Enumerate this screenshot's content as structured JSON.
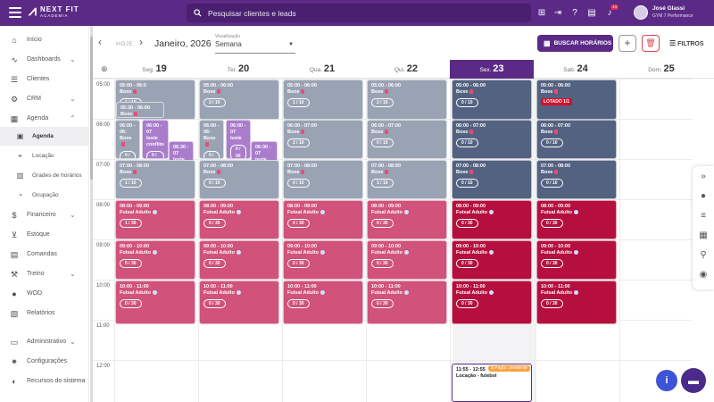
{
  "topbar": {
    "brand": "NEXT FIT",
    "brand_sub": "ACADEMIA",
    "search_placeholder": "Pesquisar clientes e leads",
    "notif_count": "14",
    "user_name": "José Glassi",
    "user_gym": "GYM 7 Performance",
    "icons": [
      "gift-icon",
      "exit-icon",
      "help-icon",
      "chat-icon",
      "bell-icon"
    ]
  },
  "sidebar": {
    "items": [
      {
        "label": "Início",
        "icon": "home-icon",
        "chev": ""
      },
      {
        "label": "Dashboards",
        "icon": "chart-icon",
        "chev": "⌄"
      },
      {
        "label": "Clientes",
        "icon": "clients-icon",
        "chev": ""
      },
      {
        "label": "CRM",
        "icon": "crm-icon",
        "chev": "⌄"
      },
      {
        "label": "Agenda",
        "icon": "calendar-icon",
        "chev": "⌃"
      },
      {
        "label": "Agenda",
        "icon": "calendar-small-icon",
        "chev": "",
        "sub": true,
        "active": true
      },
      {
        "label": "Locação",
        "icon": "location-icon",
        "chev": "",
        "sub": true
      },
      {
        "label": "Grades de horários",
        "icon": "grid-icon",
        "chev": "",
        "sub": true
      },
      {
        "label": "Ocupação",
        "icon": "occupation-icon",
        "chev": "",
        "sub": true
      },
      {
        "label": "Financeiro",
        "icon": "finance-icon",
        "chev": "⌄"
      },
      {
        "label": "Estoque",
        "icon": "cart-icon",
        "chev": ""
      },
      {
        "label": "Comandas",
        "icon": "orders-icon",
        "chev": ""
      },
      {
        "label": "Treino",
        "icon": "dumbbell-icon",
        "chev": "⌄"
      },
      {
        "label": "WOD",
        "icon": "wod-icon",
        "chev": ""
      },
      {
        "label": "Relatórios",
        "icon": "reports-icon",
        "chev": ""
      },
      {
        "label": "Administrativo",
        "icon": "admin-icon",
        "chev": "⌄"
      },
      {
        "label": "Configurações",
        "icon": "settings-icon",
        "chev": ""
      },
      {
        "label": "Recursos do sistema",
        "icon": "toggle-icon",
        "chev": ""
      }
    ]
  },
  "toolbar": {
    "hoje": "HOJE",
    "month": "Janeiro, 2026",
    "view_label": "Visualização",
    "view_value": "Semana",
    "buscar": "BUSCAR HORÁRIOS",
    "filtros": "FILTROS"
  },
  "days": [
    {
      "name": "Seg.",
      "num": "19"
    },
    {
      "name": "Ter.",
      "num": "20"
    },
    {
      "name": "Qua.",
      "num": "21"
    },
    {
      "name": "Qui.",
      "num": "22"
    },
    {
      "name": "Sex.",
      "num": "23",
      "today": true
    },
    {
      "name": "Sab.",
      "num": "24"
    },
    {
      "name": "Dom.",
      "num": "25"
    }
  ],
  "hours": [
    "05:00",
    "06:00",
    "07:00",
    "08:00",
    "09:00",
    "10:00",
    "11:00",
    "12:00"
  ],
  "events": [
    {
      "day": 0,
      "time": "05:00 - 06:0",
      "name": "Boxe",
      "pill": "1 / 10",
      "color": "gray",
      "slot": "box5"
    },
    {
      "day": 0,
      "time": "05:30 - 06:00",
      "name": "Boxe",
      "pill": "",
      "color": "gray",
      "slot": "box530"
    },
    {
      "day": 0,
      "time": "06:00 - 06:",
      "name": "Boxe",
      "pill": "0 / 10",
      "color": "gray",
      "slot": "box6a"
    },
    {
      "day": 0,
      "time": "06:00 - 07",
      "name": "teste conflito",
      "pill": "0 / 00",
      "color": "violet",
      "slot": "conf1"
    },
    {
      "day": 0,
      "time": "06:30 - 07",
      "name": "teste conflito",
      "pill": "",
      "color": "violet",
      "slot": "conf2"
    },
    {
      "day": 1,
      "time": "05:00 - 06:00",
      "name": "Boxe",
      "pill": "3 / 10",
      "color": "gray",
      "slot": "box5"
    },
    {
      "day": 1,
      "time": "06:00 - 06:",
      "name": "Boxe",
      "pill": "0 / 10",
      "color": "gray",
      "slot": "box6a"
    },
    {
      "day": 1,
      "time": "06:00 - 07",
      "name": "teste",
      "pill": "0 / 00",
      "color": "violet",
      "slot": "t2"
    },
    {
      "day": 1,
      "time": "06:30 - 07",
      "name": "teste",
      "pill": "",
      "color": "violet",
      "slot": "t3"
    },
    {
      "day": 2,
      "time": "05:00 - 06:00",
      "name": "Boxe",
      "pill": "1 / 10",
      "color": "gray",
      "slot": "box5"
    },
    {
      "day": 2,
      "time": "06:00 - 07:00",
      "name": "Boxe",
      "pill": "2 / 10",
      "color": "gray",
      "slot": "box6"
    },
    {
      "day": 3,
      "time": "05:00 - 06:00",
      "name": "Boxe",
      "pill": "2 / 10",
      "color": "gray",
      "slot": "box5"
    },
    {
      "day": 3,
      "time": "06:00 - 07:00",
      "name": "Boxe",
      "pill": "0 / 10",
      "color": "gray",
      "slot": "box6"
    },
    {
      "day": 4,
      "time": "05:00 - 06:00",
      "name": "Boxe",
      "pill": "0 / 10",
      "color": "navy",
      "slot": "box5"
    },
    {
      "day": 4,
      "time": "06:00 - 07:00",
      "name": "Boxe",
      "pill": "0 / 10",
      "color": "navy",
      "slot": "box6"
    },
    {
      "day": 5,
      "time": "05:00 - 06:00",
      "name": "Boxe",
      "pill": "",
      "lotado": "LOTADO 1/1",
      "color": "navy",
      "slot": "box5"
    },
    {
      "day": 5,
      "time": "06:00 - 07:00",
      "name": "Boxe",
      "pill": "0 / 10",
      "color": "navy",
      "slot": "box6"
    },
    {
      "day": 0,
      "time": "07:00 - 08:00",
      "name": "Boxe",
      "pill": "1 / 10",
      "color": "gray",
      "slot": "box7"
    },
    {
      "day": 1,
      "time": "07:00 - 08:00",
      "name": "Boxe",
      "pill": "0 / 10",
      "color": "gray",
      "slot": "box7"
    },
    {
      "day": 2,
      "time": "07:00 - 08:00",
      "name": "Boxe",
      "pill": "0 / 10",
      "color": "gray",
      "slot": "box7"
    },
    {
      "day": 3,
      "time": "07:00 - 08:00",
      "name": "Boxe",
      "pill": "1 / 10",
      "color": "gray",
      "slot": "box7"
    },
    {
      "day": 4,
      "time": "07:00 - 08:00",
      "name": "Boxe",
      "pill": "0 / 10",
      "color": "navy",
      "slot": "box7"
    },
    {
      "day": 5,
      "time": "07:00 - 08:00",
      "name": "Boxe",
      "pill": "0 / 10",
      "color": "navy",
      "slot": "box7"
    },
    {
      "day": 0,
      "time": "08:00 - 09:00",
      "name": "Futsal Adulto",
      "pill": "1 / 30",
      "color": "pink",
      "slot": "f8"
    },
    {
      "day": 1,
      "time": "08:00 - 09:00",
      "name": "Futsal Adulto",
      "pill": "0 / 30",
      "color": "pink",
      "slot": "f8"
    },
    {
      "day": 2,
      "time": "08:00 - 09:00",
      "name": "Futsal Adulto",
      "pill": "0 / 30",
      "color": "pink",
      "slot": "f8"
    },
    {
      "day": 3,
      "time": "08:00 - 09:00",
      "name": "Futsal Adulto",
      "pill": "0 / 30",
      "color": "pink",
      "slot": "f8"
    },
    {
      "day": 4,
      "time": "08:00 - 09:00",
      "name": "Futsal Adulto",
      "pill": "0 / 30",
      "color": "crimson",
      "slot": "f8"
    },
    {
      "day": 5,
      "time": "08:00 - 09:00",
      "name": "Futsal Adulto",
      "pill": "0 / 30",
      "color": "crimson",
      "slot": "f8"
    },
    {
      "day": 0,
      "time": "09:00 - 10:00",
      "name": "Futsal Adulto",
      "pill": "0 / 30",
      "color": "pink",
      "slot": "f9"
    },
    {
      "day": 1,
      "time": "09:00 - 10:00",
      "name": "Futsal Adulto",
      "pill": "0 / 30",
      "color": "pink",
      "slot": "f9"
    },
    {
      "day": 2,
      "time": "09:00 - 10:00",
      "name": "Futsal Adulto",
      "pill": "0 / 30",
      "color": "pink",
      "slot": "f9"
    },
    {
      "day": 3,
      "time": "09:00 - 10:00",
      "name": "Futsal Adulto",
      "pill": "0 / 30",
      "color": "pink",
      "slot": "f9"
    },
    {
      "day": 4,
      "time": "09:00 - 10:00",
      "name": "Futsal Adulto",
      "pill": "0 / 30",
      "color": "crimson",
      "slot": "f9"
    },
    {
      "day": 5,
      "time": "09:00 - 10:00",
      "name": "Futsal Adulto",
      "pill": "0 / 30",
      "color": "crimson",
      "slot": "f9"
    },
    {
      "day": 0,
      "time": "10:00 - 11:00",
      "name": "Futsal Adulto",
      "pill": "0 / 30",
      "color": "pink",
      "slot": "f10"
    },
    {
      "day": 1,
      "time": "10:00 - 11:00",
      "name": "Futsal Adulto",
      "pill": "0 / 30",
      "color": "pink",
      "slot": "f10"
    },
    {
      "day": 2,
      "time": "10:00 - 11:00",
      "name": "Futsal Adulto",
      "pill": "0 / 30",
      "color": "pink",
      "slot": "f10"
    },
    {
      "day": 3,
      "time": "10:00 - 11:00",
      "name": "Futsal Adulto",
      "pill": "0 / 30",
      "color": "pink",
      "slot": "f10"
    },
    {
      "day": 4,
      "time": "10:00 - 11:00",
      "name": "Futsal Adulto",
      "pill": "0 / 30",
      "color": "crimson",
      "slot": "f10"
    },
    {
      "day": 5,
      "time": "10:00 - 11:00",
      "name": "Futsal Adulto",
      "pill": "0 / 30",
      "color": "crimson",
      "slot": "f10"
    },
    {
      "day": 4,
      "time": "11:55 - 12:55",
      "name": "Locação - futebol",
      "pill": "",
      "tag": "$ Pagto. pendente",
      "color": "loc",
      "slot": "loc"
    }
  ],
  "colors": {
    "brand": "#5b2a86",
    "boxe_past": "#9aa3b3",
    "boxe_future": "#536280",
    "futsal_past": "#d1527a",
    "futsal_future": "#b5103d",
    "conflict": "#a97ccc"
  },
  "rail_icons": [
    "chevrons-right-icon",
    "person-icon",
    "list-icon",
    "calendar-icon",
    "pin-icon",
    "eye-icon"
  ]
}
